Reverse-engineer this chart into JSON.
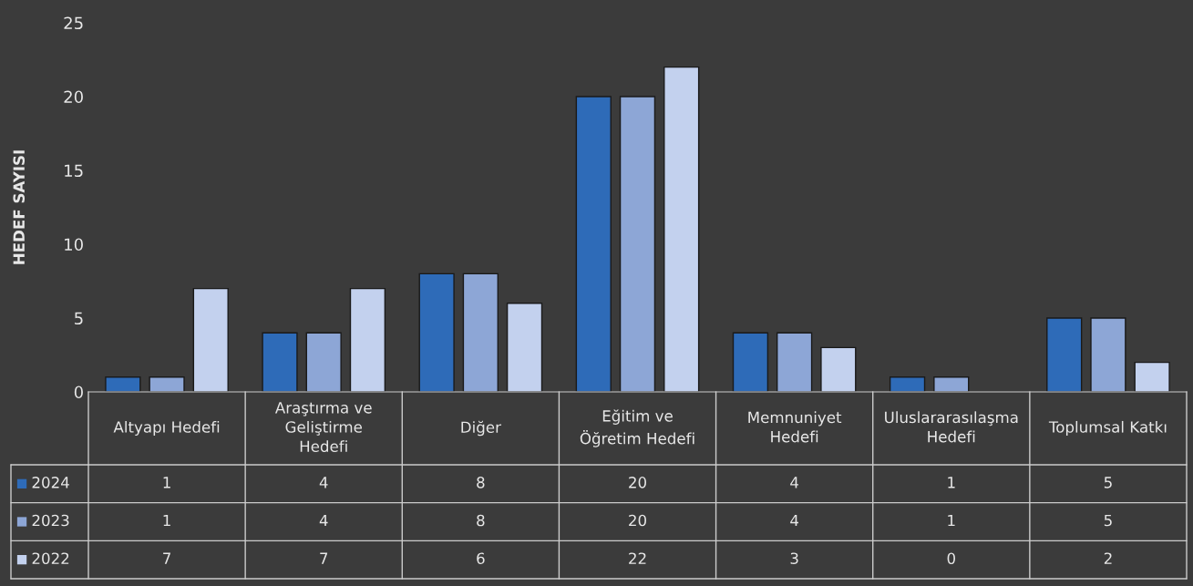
{
  "chart_data": {
    "type": "bar",
    "ylabel": "HEDEF SAYISI",
    "categories": [
      "Altyapı Hedefi",
      "Araştırma ve Geliştirme Hedefi",
      "Diğer",
      "Eğitim ve Öğretim Hedefi",
      "Memnuniyet Hedefi",
      "Uluslararasılaşma Hedefi",
      "Toplumsal Katkı"
    ],
    "series": [
      {
        "name": "2024",
        "color": "#2e6bb8",
        "values": [
          1,
          4,
          8,
          20,
          4,
          1,
          5
        ]
      },
      {
        "name": "2023",
        "color": "#8da6d6",
        "values": [
          1,
          4,
          8,
          20,
          4,
          1,
          5
        ]
      },
      {
        "name": "2022",
        "color": "#c3d1ee",
        "values": [
          7,
          7,
          6,
          22,
          3,
          0,
          2
        ]
      }
    ],
    "ylim": [
      0,
      25
    ],
    "yticks": [
      0,
      5,
      10,
      15,
      20,
      25
    ],
    "grid": false,
    "data_labels": true,
    "legend": "bottom left"
  }
}
